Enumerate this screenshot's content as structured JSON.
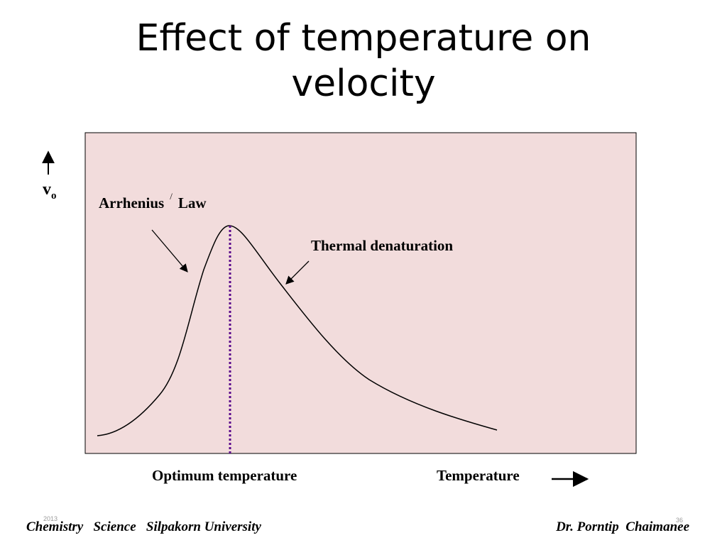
{
  "slide": {
    "title_line1": "Effect of temperature on",
    "title_line2": "velocity",
    "footer_left": "Chemistry   Science   Silpakorn University",
    "footer_right": "Dr. Porntip  Chaimanee",
    "year": "2013",
    "page_number": "36"
  },
  "diagram": {
    "background_color": "#f2dcdc",
    "curve_color": "#000000",
    "optimum_line_color": "#5b0a8c",
    "y_axis_label": "v",
    "y_axis_subscript": "o",
    "label_arrhenius_1": "Arrhenius",
    "label_arrhenius_mark": "/",
    "label_arrhenius_2": "Law",
    "label_denaturation": "Thermal denaturation",
    "label_optimum": "Optimum temperature",
    "label_x_axis": "Temperature"
  }
}
